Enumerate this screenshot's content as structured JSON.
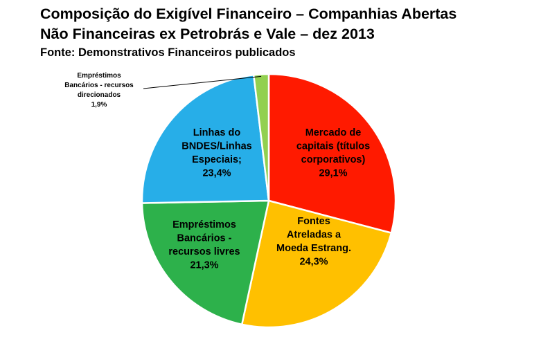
{
  "chart_data": {
    "type": "pie",
    "title": [
      "Composição do Exigível Financeiro – Companhias Abertas",
      "Não Financeiras  ex Petrobrás e Vale – dez 2013"
    ],
    "subtitle": "Fonte: Demonstrativos Financeiros publicados",
    "slices": [
      {
        "name": "Mercado de capitais (títulos corporativos)",
        "value": 29.1,
        "value_label": "29,1%",
        "label_lines": [
          "Mercado de",
          "capitais (títulos",
          "corporativos)",
          "29,1%"
        ],
        "color": "#ff1a00"
      },
      {
        "name": "Fontes Atreladas a Moeda Estrang.",
        "value": 24.3,
        "value_label": "24,3%",
        "label_lines": [
          "Fontes",
          "Atreladas a",
          "Moeda Estrang.",
          "24,3%"
        ],
        "color": "#ffc000"
      },
      {
        "name": "Empréstimos Bancários - recursos livres",
        "value": 21.3,
        "value_label": "21,3%",
        "label_lines": [
          "Empréstimos",
          "Bancários -",
          "recursos livres",
          "21,3%"
        ],
        "color": "#2db14b"
      },
      {
        "name": "Linhas do BNDES/Linhas Especiais;",
        "value": 23.4,
        "value_label": "23,4%",
        "label_lines": [
          "Linhas do",
          "BNDES/Linhas",
          "Especiais;",
          "23,4%"
        ],
        "color": "#27aee8"
      },
      {
        "name": "Empréstimos Bancários - recursos direcionados",
        "value": 1.9,
        "value_label": "1,9%",
        "label_lines": [
          "Empréstimos",
          "Bancários - recursos",
          "direcionados",
          "1,9%"
        ],
        "color": "#92d050"
      }
    ],
    "start_angle_deg": 0,
    "direction": "clockwise",
    "legend": "none"
  }
}
